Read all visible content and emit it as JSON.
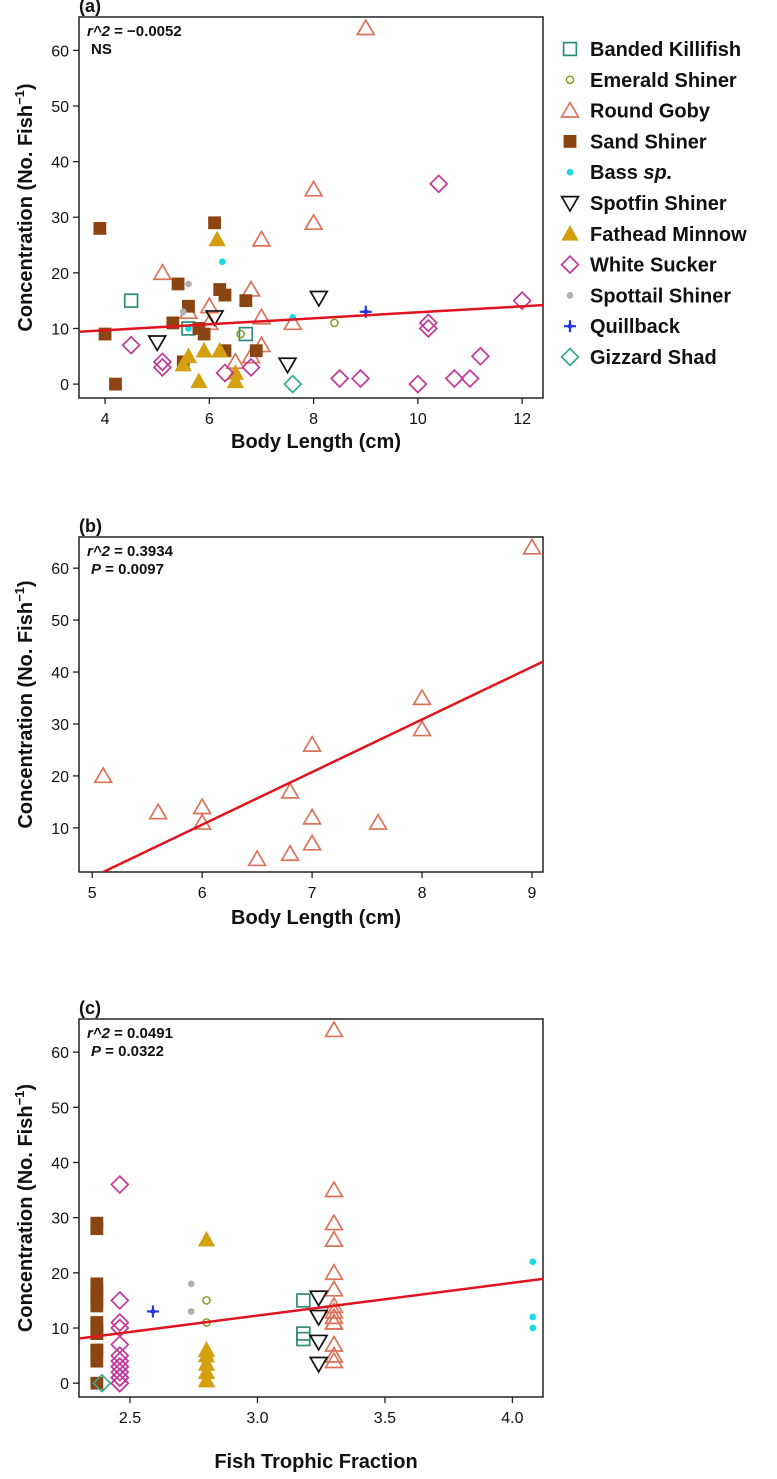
{
  "figure": {
    "legend": [
      {
        "key": "bk",
        "label": "Banded Killifish",
        "color": "#2e8b7a",
        "shape": "square-open"
      },
      {
        "key": "es",
        "label": "Emerald Shiner",
        "color": "#7a9a1a",
        "shape": "circle-open-small"
      },
      {
        "key": "rg",
        "label": "Round Goby",
        "color": "#d9735a",
        "shape": "triangle-open"
      },
      {
        "key": "ss",
        "label": "Sand Shiner",
        "color": "#8b4513",
        "shape": "square-filled"
      },
      {
        "key": "bs",
        "label_parts": [
          "Bass ",
          "sp."
        ],
        "color": "#19d9e6",
        "shape": "dot"
      },
      {
        "key": "sf",
        "label": "Spotfin Shiner",
        "color": "#111111",
        "shape": "triangle-down-open"
      },
      {
        "key": "fm",
        "label": "Fathead Minnow",
        "color": "#d4a012",
        "shape": "triangle-filled"
      },
      {
        "key": "ws",
        "label": "White Sucker",
        "color": "#c0389a",
        "shape": "diamond-open"
      },
      {
        "key": "sp",
        "label": "Spottail Shiner",
        "color": "#b0b0b0",
        "shape": "dot"
      },
      {
        "key": "qb",
        "label": "Quillback",
        "color": "#2336e0",
        "shape": "plus-filled"
      },
      {
        "key": "gs",
        "label": "Gizzard Shad",
        "color": "#3aa88a",
        "shape": "diamond-open"
      }
    ],
    "fit_line_color": "#e0141e"
  },
  "chart_data": [
    {
      "type": "scatter",
      "panel_label": "(a)",
      "xlabel": "Body Length (cm)",
      "ylabel": "Concentration (No. Fish",
      "ylabel_sup": "−1",
      "ylabel_close": ")",
      "stat_line1": {
        "label": "r^2",
        "value": " = −0.0052"
      },
      "stat_line2": {
        "label": "",
        "value": "NS"
      },
      "xlim": [
        3.5,
        12.4
      ],
      "ylim": [
        -2.5,
        66
      ],
      "xticks": [
        4,
        6,
        8,
        10,
        12
      ],
      "yticks": [
        0,
        10,
        20,
        30,
        40,
        50,
        60
      ],
      "fit_line": {
        "x": [
          3.5,
          12.4
        ],
        "y": [
          9.4,
          14.2
        ]
      },
      "series": [
        {
          "name": "Banded Killifish",
          "key": "bk",
          "points": [
            [
              4.5,
              15
            ],
            [
              6.7,
              9
            ],
            [
              5.6,
              10
            ]
          ]
        },
        {
          "name": "Emerald Shiner",
          "key": "es",
          "points": [
            [
              8.4,
              11
            ],
            [
              6.6,
              9
            ]
          ]
        },
        {
          "name": "Round Goby",
          "key": "rg",
          "points": [
            [
              9,
              64
            ],
            [
              8,
              35
            ],
            [
              8,
              29
            ],
            [
              7,
              26
            ],
            [
              5.1,
              20
            ],
            [
              6.8,
              17
            ],
            [
              5.6,
              13
            ],
            [
              6,
              14
            ],
            [
              6,
              11
            ],
            [
              7,
              12
            ],
            [
              7.6,
              11
            ],
            [
              7,
              7
            ],
            [
              6.8,
              5
            ],
            [
              6.5,
              4
            ]
          ]
        },
        {
          "name": "Sand Shiner",
          "key": "ss",
          "points": [
            [
              3.9,
              28
            ],
            [
              6.1,
              29
            ],
            [
              5.4,
              18
            ],
            [
              6.2,
              17
            ],
            [
              6.3,
              16
            ],
            [
              6.7,
              15
            ],
            [
              5.6,
              14
            ],
            [
              5.3,
              11
            ],
            [
              5.8,
              10
            ],
            [
              4,
              9
            ],
            [
              5.9,
              9
            ],
            [
              6.3,
              6
            ],
            [
              6.9,
              6
            ],
            [
              5.5,
              4
            ],
            [
              4.2,
              0
            ]
          ]
        },
        {
          "name": "Bass sp.",
          "key": "bs",
          "points": [
            [
              6.25,
              22
            ],
            [
              7.6,
              12
            ],
            [
              5.6,
              10
            ]
          ]
        },
        {
          "name": "Spotfin Shiner",
          "key": "sf",
          "points": [
            [
              8.1,
              15.5
            ],
            [
              6.1,
              12
            ],
            [
              5.0,
              7.5
            ],
            [
              7.5,
              3.5
            ]
          ]
        },
        {
          "name": "Fathead Minnow",
          "key": "fm",
          "points": [
            [
              6.15,
              26
            ],
            [
              5.9,
              6
            ],
            [
              6.2,
              6
            ],
            [
              5.6,
              5
            ],
            [
              5.5,
              3.5
            ],
            [
              5.8,
              0.5
            ],
            [
              6.5,
              0.5
            ],
            [
              6.5,
              2
            ]
          ]
        },
        {
          "name": "White Sucker",
          "key": "ws",
          "points": [
            [
              10.4,
              36
            ],
            [
              12,
              15
            ],
            [
              10.2,
              11
            ],
            [
              10.2,
              10
            ],
            [
              5.1,
              4
            ],
            [
              5.1,
              3
            ],
            [
              4.5,
              7
            ],
            [
              6.3,
              2
            ],
            [
              6.8,
              3
            ],
            [
              11.2,
              5
            ],
            [
              8.5,
              1
            ],
            [
              8.9,
              1
            ],
            [
              10,
              0
            ],
            [
              10.7,
              1
            ],
            [
              11,
              1
            ]
          ]
        },
        {
          "name": "Spottail Shiner",
          "key": "sp",
          "points": [
            [
              5.6,
              18
            ],
            [
              5.5,
              13
            ]
          ]
        },
        {
          "name": "Quillback",
          "key": "qb",
          "points": [
            [
              9,
              13
            ]
          ]
        },
        {
          "name": "Gizzard Shad",
          "key": "gs",
          "points": [
            [
              7.6,
              0
            ]
          ]
        }
      ]
    },
    {
      "type": "scatter",
      "panel_label": "(b)",
      "xlabel": "Body Length (cm)",
      "ylabel": "Concentration (No. Fish",
      "ylabel_sup": "−1",
      "ylabel_close": ")",
      "stat_line1": {
        "label": "r^2",
        "value": " = 0.3934"
      },
      "stat_line2": {
        "label": "P",
        "value": " = 0.0097"
      },
      "xlim": [
        4.88,
        9.1
      ],
      "ylim": [
        1.5,
        66
      ],
      "xticks": [
        5,
        6,
        7,
        8,
        9
      ],
      "yticks": [
        10,
        20,
        30,
        40,
        50,
        60
      ],
      "fit_line": {
        "x": [
          5.1,
          9.1
        ],
        "y": [
          1.5,
          42
        ]
      },
      "series": [
        {
          "name": "Round Goby",
          "key": "rg",
          "points": [
            [
              9,
              64
            ],
            [
              8,
              35
            ],
            [
              8,
              29
            ],
            [
              7,
              26
            ],
            [
              5.1,
              20
            ],
            [
              6.8,
              17
            ],
            [
              5.6,
              13
            ],
            [
              6,
              14
            ],
            [
              6,
              11
            ],
            [
              7,
              12
            ],
            [
              7.6,
              11
            ],
            [
              7,
              7
            ],
            [
              6.8,
              5
            ],
            [
              6.5,
              4
            ]
          ]
        }
      ]
    },
    {
      "type": "scatter",
      "panel_label": "(c)",
      "xlabel": "Fish Trophic Fraction",
      "ylabel": "Concentration (No. Fish",
      "ylabel_sup": "−1",
      "ylabel_close": ")",
      "stat_line1": {
        "label": "r^2",
        "value": " = 0.0491"
      },
      "stat_line2": {
        "label": "P",
        "value": " = 0.0322"
      },
      "xlim": [
        2.3,
        4.12
      ],
      "ylim": [
        -2.5,
        66
      ],
      "xticks": [
        2.5,
        3.0,
        3.5,
        4.0
      ],
      "ytick_labels_decimals": 1,
      "yticks": [
        0,
        10,
        20,
        30,
        40,
        50,
        60
      ],
      "fit_line": {
        "x": [
          2.3,
          4.12
        ],
        "y": [
          8.1,
          18.9
        ]
      },
      "series": [
        {
          "name": "Banded Killifish",
          "key": "bk",
          "points": [
            [
              3.18,
              15
            ],
            [
              3.18,
              9
            ],
            [
              3.18,
              8
            ]
          ]
        },
        {
          "name": "Emerald Shiner",
          "key": "es",
          "points": [
            [
              2.8,
              15
            ],
            [
              2.8,
              11
            ]
          ]
        },
        {
          "name": "Round Goby",
          "key": "rg",
          "points": [
            [
              3.3,
              64
            ],
            [
              3.3,
              35
            ],
            [
              3.3,
              29
            ],
            [
              3.3,
              26
            ],
            [
              3.3,
              20
            ],
            [
              3.3,
              17
            ],
            [
              3.3,
              14
            ],
            [
              3.3,
              13
            ],
            [
              3.3,
              12
            ],
            [
              3.3,
              11
            ],
            [
              3.3,
              11
            ],
            [
              3.3,
              7
            ],
            [
              3.3,
              5
            ],
            [
              3.3,
              4
            ]
          ]
        },
        {
          "name": "Sand Shiner",
          "key": "ss",
          "points": [
            [
              2.37,
              29
            ],
            [
              2.37,
              28
            ],
            [
              2.37,
              18
            ],
            [
              2.37,
              17
            ],
            [
              2.37,
              16
            ],
            [
              2.37,
              15
            ],
            [
              2.37,
              14
            ],
            [
              2.37,
              11
            ],
            [
              2.37,
              10
            ],
            [
              2.37,
              9
            ],
            [
              2.37,
              9
            ],
            [
              2.37,
              6
            ],
            [
              2.37,
              6
            ],
            [
              2.37,
              4
            ],
            [
              2.37,
              0
            ]
          ]
        },
        {
          "name": "Bass sp.",
          "key": "bs",
          "points": [
            [
              4.08,
              22
            ],
            [
              4.08,
              12
            ],
            [
              4.08,
              10
            ]
          ]
        },
        {
          "name": "Spotfin Shiner",
          "key": "sf",
          "points": [
            [
              3.24,
              15.5
            ],
            [
              3.24,
              12
            ],
            [
              3.24,
              7.5
            ],
            [
              3.24,
              3.5
            ]
          ]
        },
        {
          "name": "Fathead Minnow",
          "key": "fm",
          "points": [
            [
              2.8,
              26
            ],
            [
              2.8,
              6
            ],
            [
              2.8,
              6
            ],
            [
              2.8,
              5
            ],
            [
              2.8,
              3.5
            ],
            [
              2.8,
              0.5
            ],
            [
              2.8,
              0.5
            ],
            [
              2.8,
              2
            ]
          ]
        },
        {
          "name": "White Sucker",
          "key": "ws",
          "points": [
            [
              2.46,
              36
            ],
            [
              2.46,
              15
            ],
            [
              2.46,
              11
            ],
            [
              2.46,
              10
            ],
            [
              2.46,
              7
            ],
            [
              2.46,
              5
            ],
            [
              2.46,
              4
            ],
            [
              2.46,
              3
            ],
            [
              2.46,
              3
            ],
            [
              2.46,
              2
            ],
            [
              2.46,
              1
            ],
            [
              2.46,
              1
            ],
            [
              2.46,
              1
            ],
            [
              2.46,
              0
            ],
            [
              2.46,
              0
            ]
          ]
        },
        {
          "name": "Spottail Shiner",
          "key": "sp",
          "points": [
            [
              2.74,
              18
            ],
            [
              2.74,
              13
            ]
          ]
        },
        {
          "name": "Quillback",
          "key": "qb",
          "points": [
            [
              2.59,
              13
            ]
          ]
        },
        {
          "name": "Gizzard Shad",
          "key": "gs",
          "points": [
            [
              2.39,
              0
            ]
          ]
        }
      ]
    }
  ]
}
